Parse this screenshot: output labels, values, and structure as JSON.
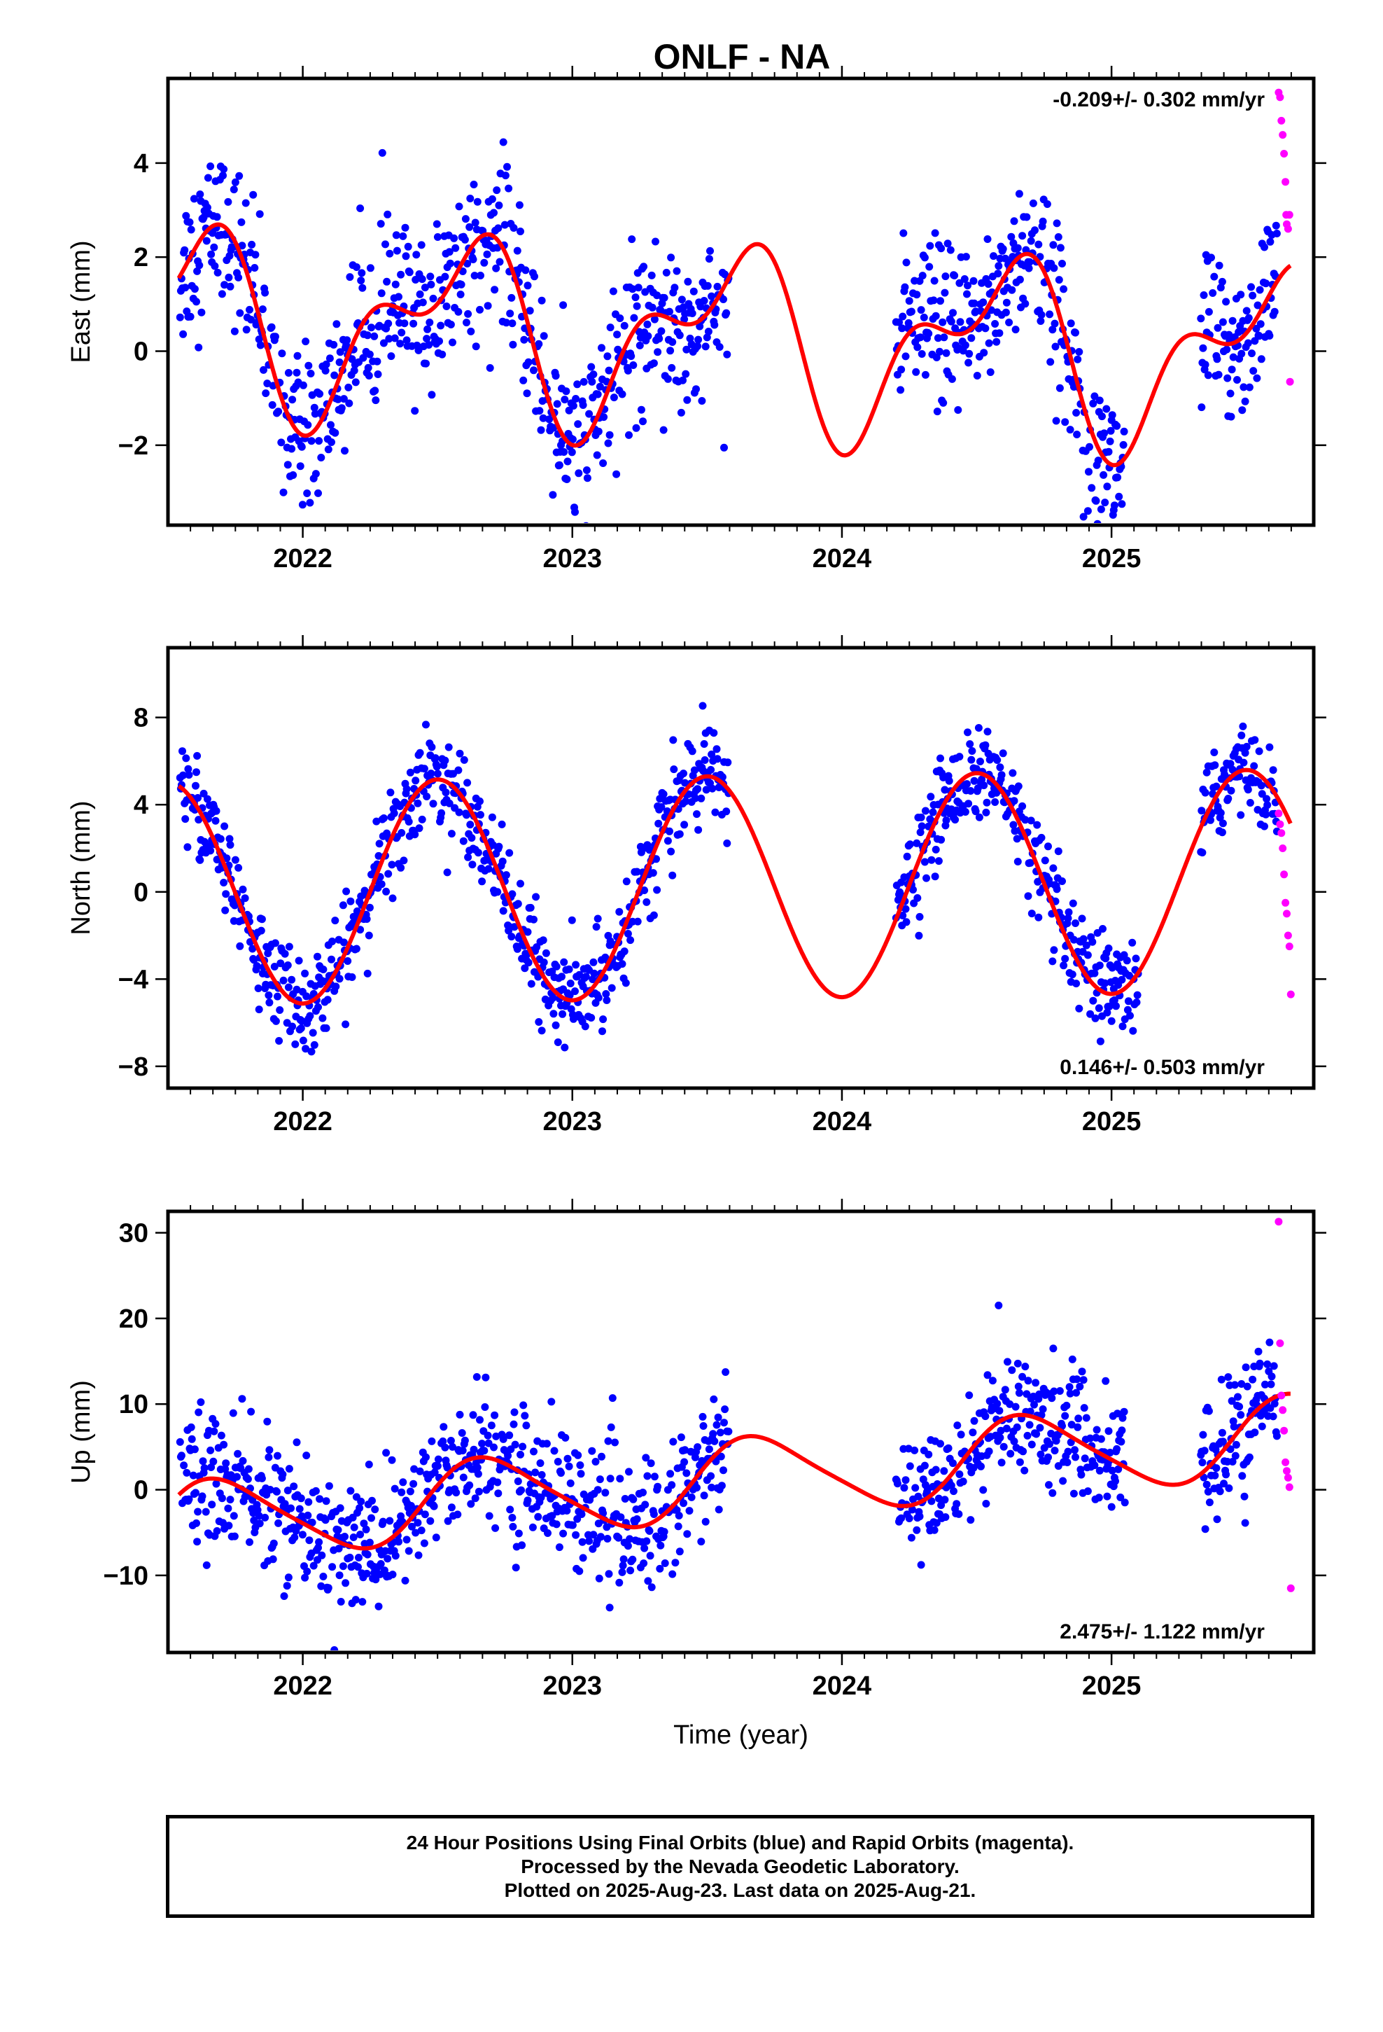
{
  "chart_data": {
    "title": "ONLF - NA",
    "type": "scatter",
    "xlabel": "Time (year)",
    "xlim": [
      2021.5,
      2025.75
    ],
    "x_ticks": [
      2022,
      2023,
      2024,
      2025
    ],
    "x_tick_labels": [
      "2022",
      "2023",
      "2024",
      "2025"
    ],
    "colors": {
      "final": "#0000ff",
      "rapid": "#ff00ff",
      "fit": "#ff0000"
    },
    "panels": [
      {
        "name": "east",
        "ylabel": "East (mm)",
        "ylim": [
          -3.7,
          5.8
        ],
        "y_ticks": [
          -2,
          0,
          2,
          4
        ],
        "y_tick_labels": [
          "−2",
          "0",
          "2",
          "4"
        ],
        "rate": "-0.209+/- 0.302 mm/yr",
        "rate_position": "top-right",
        "model": {
          "ref": 2023.5,
          "offset": 0.3,
          "trend": -0.209,
          "annual": [
            -0.7,
            -1.45
          ],
          "semiannual": [
            0.2,
            -0.95
          ]
        },
        "noise": 0.85,
        "gaps": [
          [
            2023.58,
            2024.2
          ],
          [
            2025.05,
            2025.33
          ]
        ],
        "rapid_points": [
          [
            2025.62,
            5.5
          ],
          [
            2025.625,
            5.4
          ],
          [
            2025.63,
            4.9
          ],
          [
            2025.635,
            4.6
          ],
          [
            2025.64,
            4.2
          ],
          [
            2025.645,
            3.6
          ],
          [
            2025.648,
            2.9
          ],
          [
            2025.65,
            2.7
          ],
          [
            2025.655,
            2.6
          ],
          [
            2025.66,
            2.9
          ],
          [
            2025.662,
            -0.65
          ]
        ]
      },
      {
        "name": "north",
        "ylabel": "North (mm)",
        "ylim": [
          -9,
          11.2
        ],
        "y_ticks": [
          -8,
          -4,
          0,
          4,
          8
        ],
        "y_tick_labels": [
          "−8",
          "−4",
          "0",
          "4",
          "8"
        ],
        "rate": "0.146+/- 0.503 mm/yr",
        "rate_position": "bottom-right",
        "model": {
          "ref": 2023.5,
          "offset": 0.2,
          "trend": 0.146,
          "annual": [
            0.0,
            -5.1
          ],
          "semiannual": [
            0.0,
            0.0
          ]
        },
        "noise": 1.1,
        "gaps": [
          [
            2023.58,
            2024.2
          ],
          [
            2025.1,
            2025.33
          ]
        ],
        "rapid_points": [
          [
            2025.62,
            3.6
          ],
          [
            2025.625,
            3.1
          ],
          [
            2025.63,
            2.7
          ],
          [
            2025.635,
            2.0
          ],
          [
            2025.64,
            0.8
          ],
          [
            2025.645,
            -0.5
          ],
          [
            2025.65,
            -1.0
          ],
          [
            2025.655,
            -2.0
          ],
          [
            2025.66,
            -2.5
          ],
          [
            2025.665,
            -4.7
          ]
        ]
      },
      {
        "name": "up",
        "ylabel": "Up (mm)",
        "ylim": [
          -19,
          32.5
        ],
        "y_ticks": [
          -10,
          0,
          10,
          20,
          30
        ],
        "y_tick_labels": [
          "−10",
          "0",
          "10",
          "20",
          "30"
        ],
        "rate": "2.475+/- 1.122 mm/yr",
        "rate_position": "bottom-right",
        "model": {
          "ref": 2023.5,
          "offset": 1.0,
          "trend": 2.475,
          "annual": [
            -4.3,
            -1.6
          ],
          "semiannual": [
            0.6,
            0.4
          ]
        },
        "noise": 3.8,
        "gaps": [
          [
            2023.58,
            2024.2
          ],
          [
            2025.05,
            2025.33
          ]
        ],
        "rapid_points": [
          [
            2025.62,
            31.3
          ],
          [
            2025.625,
            17.1
          ],
          [
            2025.63,
            11.0
          ],
          [
            2025.635,
            9.3
          ],
          [
            2025.64,
            6.9
          ],
          [
            2025.645,
            3.2
          ],
          [
            2025.65,
            2.2
          ],
          [
            2025.655,
            1.4
          ],
          [
            2025.66,
            0.3
          ],
          [
            2025.665,
            -11.5
          ]
        ]
      }
    ]
  },
  "caption": {
    "line1": "24 Hour Positions Using Final Orbits (blue) and Rapid Orbits (magenta).",
    "line2": "Processed by the Nevada Geodetic Laboratory.",
    "line3": "Plotted on 2025-Aug-23. Last data on 2025-Aug-21."
  }
}
